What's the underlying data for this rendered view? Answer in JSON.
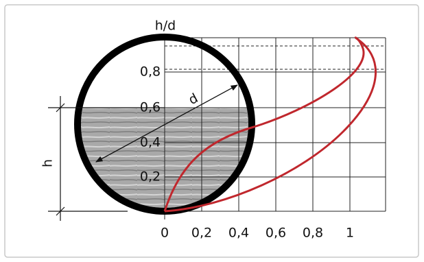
{
  "diagram": {
    "y_axis_label": "h/d",
    "y_ticks": [
      "0,2",
      "0,4",
      "0,6",
      "0,8"
    ],
    "x_ticks": [
      "0",
      "0,2",
      "0,4",
      "0,6",
      "0,8",
      "1"
    ],
    "diameter_label": "d",
    "height_label": "h"
  }
}
